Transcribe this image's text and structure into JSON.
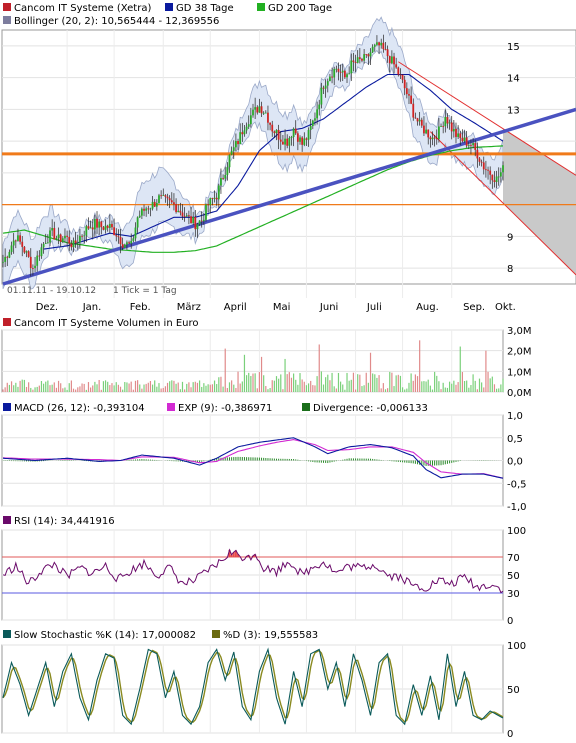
{
  "chart_data": [
    {
      "type": "line",
      "panel": "price",
      "legend": [
        {
          "label": "Cancom IT Systeme (Xetra)",
          "color": "#c0202a"
        },
        {
          "label": "GD 38 Tage",
          "color": "#0a1a9e"
        },
        {
          "label": "GD 200 Tage",
          "color": "#22b022"
        },
        {
          "label": "Bollinger (20, 2): 10,565444 - 12,369556",
          "color": "#7d7d9e"
        }
      ],
      "y_ticks": [
        "15",
        "14",
        "13",
        "12",
        "11",
        "10",
        "9",
        "8"
      ],
      "ylim": [
        7.5,
        15.5
      ],
      "x_ticks": [
        "Dez.",
        "Jan.",
        "Feb.",
        "März",
        "April",
        "Mai",
        "Juni",
        "Juli",
        "Aug.",
        "Sep.",
        "Okt."
      ],
      "x_range": "01.11.11 - 19.10.12",
      "tick_note": "1 Tick = 1 Tag",
      "close": [
        [
          0,
          8.2
        ],
        [
          3,
          8.6
        ],
        [
          6,
          9.0
        ],
        [
          9,
          8.7
        ],
        [
          12,
          8.3
        ],
        [
          14,
          8.0
        ],
        [
          17,
          8.5
        ],
        [
          20,
          8.9
        ],
        [
          23,
          9.1
        ],
        [
          26,
          8.9
        ],
        [
          29,
          9.0
        ],
        [
          33,
          8.7
        ],
        [
          36,
          9.0
        ],
        [
          40,
          9.3
        ],
        [
          43,
          9.4
        ],
        [
          46,
          9.3
        ],
        [
          50,
          9.3
        ],
        [
          53,
          9.1
        ],
        [
          56,
          8.8
        ],
        [
          60,
          8.7
        ],
        [
          63,
          9.6
        ],
        [
          67,
          9.9
        ],
        [
          70,
          10.0
        ],
        [
          73,
          10.2
        ],
        [
          76,
          10.1
        ],
        [
          80,
          10.0
        ],
        [
          83,
          9.8
        ],
        [
          86,
          9.6
        ],
        [
          90,
          9.4
        ],
        [
          93,
          9.5
        ],
        [
          96,
          10.0
        ],
        [
          100,
          10.3
        ],
        [
          103,
          10.9
        ],
        [
          106,
          11.5
        ],
        [
          110,
          12.0
        ],
        [
          113,
          12.5
        ],
        [
          116,
          12.8
        ],
        [
          120,
          13.1
        ],
        [
          123,
          12.9
        ],
        [
          126,
          12.4
        ],
        [
          130,
          12.1
        ],
        [
          133,
          12.0
        ],
        [
          136,
          12.4
        ],
        [
          140,
          11.9
        ],
        [
          143,
          12.2
        ],
        [
          146,
          12.8
        ],
        [
          150,
          13.8
        ],
        [
          153,
          14.1
        ],
        [
          156,
          14.3
        ],
        [
          160,
          14.0
        ],
        [
          163,
          14.4
        ],
        [
          166,
          14.5
        ],
        [
          170,
          14.6
        ],
        [
          173,
          14.9
        ],
        [
          176,
          15.0
        ],
        [
          180,
          14.7
        ],
        [
          183,
          14.4
        ],
        [
          186,
          14.0
        ],
        [
          189,
          13.5
        ],
        [
          192,
          12.9
        ],
        [
          195,
          12.5
        ],
        [
          198,
          12.3
        ],
        [
          201,
          12.1
        ],
        [
          204,
          12.3
        ],
        [
          207,
          12.8
        ],
        [
          210,
          12.4
        ],
        [
          213,
          12.1
        ],
        [
          216,
          12.0
        ],
        [
          219,
          11.9
        ],
        [
          222,
          11.6
        ],
        [
          225,
          11.2
        ],
        [
          228,
          11.0
        ],
        [
          231,
          10.8
        ],
        [
          234,
          11.1
        ]
      ],
      "gd38": [
        [
          19,
          8.6
        ],
        [
          30,
          8.7
        ],
        [
          40,
          8.9
        ],
        [
          50,
          9.1
        ],
        [
          60,
          9.0
        ],
        [
          70,
          9.3
        ],
        [
          80,
          9.6
        ],
        [
          90,
          9.6
        ],
        [
          100,
          9.8
        ],
        [
          110,
          10.6
        ],
        [
          120,
          11.7
        ],
        [
          130,
          12.3
        ],
        [
          140,
          12.4
        ],
        [
          150,
          12.7
        ],
        [
          160,
          13.2
        ],
        [
          170,
          13.7
        ],
        [
          180,
          14.1
        ],
        [
          190,
          14.1
        ],
        [
          200,
          13.6
        ],
        [
          210,
          13.0
        ],
        [
          220,
          12.6
        ],
        [
          234,
          12.0
        ]
      ],
      "gd200": [
        [
          0,
          9.1
        ],
        [
          10,
          9.2
        ],
        [
          20,
          9.0
        ],
        [
          30,
          8.8
        ],
        [
          40,
          8.7
        ],
        [
          50,
          8.6
        ],
        [
          60,
          8.55
        ],
        [
          70,
          8.5
        ],
        [
          80,
          8.5
        ],
        [
          90,
          8.55
        ],
        [
          100,
          8.7
        ],
        [
          110,
          9.0
        ],
        [
          120,
          9.3
        ],
        [
          130,
          9.6
        ],
        [
          140,
          9.9
        ],
        [
          150,
          10.2
        ],
        [
          160,
          10.5
        ],
        [
          170,
          10.8
        ],
        [
          180,
          11.1
        ],
        [
          190,
          11.35
        ],
        [
          200,
          11.55
        ],
        [
          210,
          11.7
        ],
        [
          220,
          11.8
        ],
        [
          234,
          11.85
        ]
      ],
      "trendline": [
        [
          0,
          7.5
        ],
        [
          234,
          12.2
        ],
        [
          271,
          13.0
        ]
      ],
      "resistance_orange": 11.6,
      "support_orange": 10.0,
      "channel_upper": [
        [
          185,
          14.5
        ],
        [
          271,
          10.8
        ]
      ],
      "channel_lower": [
        [
          200,
          12.3
        ],
        [
          271,
          7.6
        ]
      ]
    },
    {
      "type": "bar",
      "panel": "volume",
      "legend": [
        {
          "label": "Cancom IT Systeme Volumen in Euro",
          "color": "#c0202a"
        }
      ],
      "y_ticks": [
        "3,0M",
        "2,0M",
        "1,0M",
        "0,0M"
      ],
      "ylim": [
        0,
        3.0
      ],
      "spikes": [
        [
          104,
          2.1
        ],
        [
          113,
          1.8
        ],
        [
          121,
          1.7
        ],
        [
          132,
          1.6
        ],
        [
          148,
          2.3
        ],
        [
          172,
          1.9
        ],
        [
          195,
          2.5
        ],
        [
          214,
          2.2
        ],
        [
          226,
          2.0
        ]
      ]
    },
    {
      "type": "line",
      "panel": "macd",
      "legend": [
        {
          "label": "MACD (26, 12): -0,393104",
          "color": "#0a1a9e"
        },
        {
          "label": "EXP (9): -0,386971",
          "color": "#d22ad2"
        },
        {
          "label": "Divergence: -0,006133",
          "color": "#1a6e1a"
        }
      ],
      "y_ticks": [
        "1,0",
        "0,5",
        "0,0",
        "-0,5",
        "-1,0"
      ],
      "ylim": [
        -1.0,
        1.0
      ],
      "macd": [
        [
          0,
          0.05
        ],
        [
          15,
          0.0
        ],
        [
          30,
          0.05
        ],
        [
          45,
          -0.02
        ],
        [
          55,
          0.0
        ],
        [
          65,
          0.12
        ],
        [
          80,
          0.05
        ],
        [
          92,
          -0.1
        ],
        [
          100,
          0.05
        ],
        [
          110,
          0.3
        ],
        [
          120,
          0.4
        ],
        [
          128,
          0.45
        ],
        [
          136,
          0.5
        ],
        [
          146,
          0.3
        ],
        [
          152,
          0.15
        ],
        [
          162,
          0.3
        ],
        [
          172,
          0.35
        ],
        [
          182,
          0.28
        ],
        [
          192,
          0.1
        ],
        [
          198,
          -0.2
        ],
        [
          205,
          -0.38
        ],
        [
          215,
          -0.3
        ],
        [
          225,
          -0.3
        ],
        [
          234,
          -0.39
        ]
      ],
      "signal": [
        [
          0,
          0.06
        ],
        [
          15,
          0.03
        ],
        [
          30,
          0.03
        ],
        [
          45,
          0.02
        ],
        [
          55,
          0.0
        ],
        [
          65,
          0.08
        ],
        [
          80,
          0.07
        ],
        [
          92,
          -0.05
        ],
        [
          100,
          -0.02
        ],
        [
          110,
          0.2
        ],
        [
          120,
          0.32
        ],
        [
          128,
          0.4
        ],
        [
          136,
          0.46
        ],
        [
          146,
          0.35
        ],
        [
          152,
          0.22
        ],
        [
          162,
          0.24
        ],
        [
          172,
          0.3
        ],
        [
          182,
          0.3
        ],
        [
          192,
          0.18
        ],
        [
          198,
          -0.05
        ],
        [
          205,
          -0.25
        ],
        [
          215,
          -0.3
        ],
        [
          225,
          -0.29
        ],
        [
          234,
          -0.39
        ]
      ]
    },
    {
      "type": "line",
      "panel": "rsi",
      "legend": [
        {
          "label": "RSI (14): 34,441916",
          "color": "#6a0a6a"
        }
      ],
      "y_ticks": [
        "100",
        "70",
        "50",
        "30",
        "0"
      ],
      "ylim": [
        0,
        100
      ],
      "levels": [
        70,
        30
      ],
      "rsi": [
        [
          0,
          50
        ],
        [
          6,
          60
        ],
        [
          12,
          40
        ],
        [
          18,
          55
        ],
        [
          24,
          62
        ],
        [
          30,
          48
        ],
        [
          36,
          58
        ],
        [
          42,
          52
        ],
        [
          48,
          60
        ],
        [
          54,
          45
        ],
        [
          60,
          55
        ],
        [
          66,
          63
        ],
        [
          72,
          50
        ],
        [
          78,
          58
        ],
        [
          84,
          40
        ],
        [
          90,
          44
        ],
        [
          96,
          55
        ],
        [
          102,
          65
        ],
        [
          106,
          75
        ],
        [
          110,
          73
        ],
        [
          114,
          68
        ],
        [
          118,
          75
        ],
        [
          122,
          58
        ],
        [
          128,
          54
        ],
        [
          134,
          66
        ],
        [
          140,
          50
        ],
        [
          146,
          60
        ],
        [
          150,
          65
        ],
        [
          156,
          52
        ],
        [
          162,
          60
        ],
        [
          168,
          58
        ],
        [
          174,
          62
        ],
        [
          180,
          50
        ],
        [
          186,
          48
        ],
        [
          192,
          38
        ],
        [
          198,
          36
        ],
        [
          204,
          44
        ],
        [
          210,
          40
        ],
        [
          216,
          48
        ],
        [
          222,
          36
        ],
        [
          228,
          40
        ],
        [
          234,
          34
        ]
      ]
    },
    {
      "type": "line",
      "panel": "stochastic",
      "legend": [
        {
          "label": "Slow Stochastic %K (14): 17,000082",
          "color": "#0a5a5a"
        },
        {
          "label": "%D (3): 19,555583",
          "color": "#6a6a10"
        }
      ],
      "y_ticks": [
        "100",
        "50",
        "0"
      ],
      "ylim": [
        0,
        100
      ],
      "k": [
        [
          0,
          40
        ],
        [
          4,
          80
        ],
        [
          8,
          55
        ],
        [
          12,
          20
        ],
        [
          16,
          50
        ],
        [
          20,
          80
        ],
        [
          24,
          30
        ],
        [
          28,
          70
        ],
        [
          32,
          90
        ],
        [
          36,
          40
        ],
        [
          40,
          15
        ],
        [
          44,
          60
        ],
        [
          48,
          90
        ],
        [
          52,
          85
        ],
        [
          56,
          20
        ],
        [
          60,
          10
        ],
        [
          64,
          50
        ],
        [
          68,
          95
        ],
        [
          72,
          90
        ],
        [
          76,
          40
        ],
        [
          80,
          70
        ],
        [
          84,
          20
        ],
        [
          88,
          10
        ],
        [
          92,
          30
        ],
        [
          96,
          80
        ],
        [
          100,
          95
        ],
        [
          104,
          60
        ],
        [
          108,
          92
        ],
        [
          112,
          30
        ],
        [
          116,
          15
        ],
        [
          120,
          70
        ],
        [
          124,
          95
        ],
        [
          128,
          40
        ],
        [
          132,
          10
        ],
        [
          136,
          70
        ],
        [
          140,
          30
        ],
        [
          144,
          90
        ],
        [
          148,
          95
        ],
        [
          152,
          50
        ],
        [
          156,
          80
        ],
        [
          160,
          30
        ],
        [
          164,
          90
        ],
        [
          168,
          60
        ],
        [
          172,
          20
        ],
        [
          176,
          80
        ],
        [
          180,
          90
        ],
        [
          184,
          20
        ],
        [
          188,
          10
        ],
        [
          192,
          55
        ],
        [
          196,
          20
        ],
        [
          200,
          65
        ],
        [
          204,
          15
        ],
        [
          208,
          90
        ],
        [
          212,
          30
        ],
        [
          216,
          70
        ],
        [
          220,
          20
        ],
        [
          224,
          15
        ],
        [
          228,
          25
        ],
        [
          234,
          17
        ]
      ]
    }
  ]
}
